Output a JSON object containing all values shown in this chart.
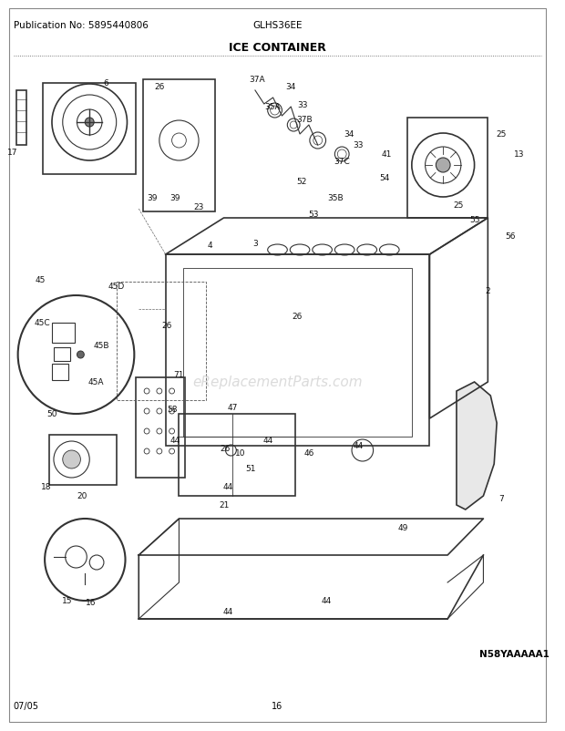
{
  "title": "ICE CONTAINER",
  "pub_no": "Publication No: 5895440806",
  "model": "GLHS36EE",
  "diagram_id": "N58YAAAAA1",
  "date": "07/05",
  "page": "16",
  "bg_color": "#ffffff",
  "border_color": "#000000",
  "text_color": "#000000",
  "fig_width": 6.2,
  "fig_height": 8.03,
  "dpi": 100,
  "title_fontsize": 9,
  "header_fontsize": 7.5,
  "small_fontsize": 7
}
